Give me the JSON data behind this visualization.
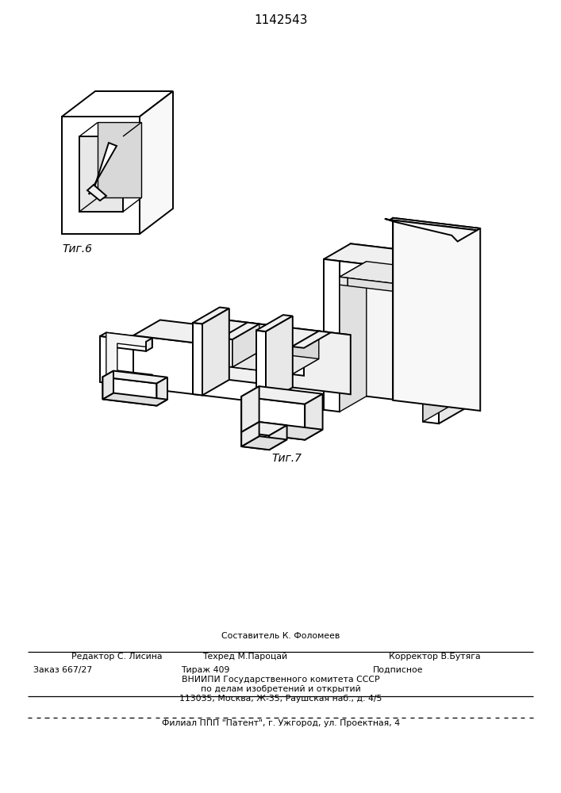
{
  "title": "1142543",
  "fig6_label": "Τиг.6",
  "fig7_label": "Τиг.7",
  "footer_line1_text": "Составитель К. Фоломеев",
  "footer_line2_left": "Редактор С. Лисина",
  "footer_line2_mid": "Техред М.Пароцай",
  "footer_line2_right": "Корректор В.Бутяга",
  "footer_line3_left": "Заказ 667/27",
  "footer_line3_mid": "Тираж 409",
  "footer_line3_right": "Подписное",
  "footer_line4": "ВНИИПИ Государственного комитета СССР",
  "footer_line5": "по делам изобретений и открытий",
  "footer_line6": "113035, Москва, Ж-35, Раушская наб., д. 4/5",
  "footer_last": "Филиал ППП \"Патент\", г. Ужгород, ул. Проектная, 4",
  "bg_color": "#ffffff",
  "line_color": "#000000",
  "text_color": "#000000"
}
